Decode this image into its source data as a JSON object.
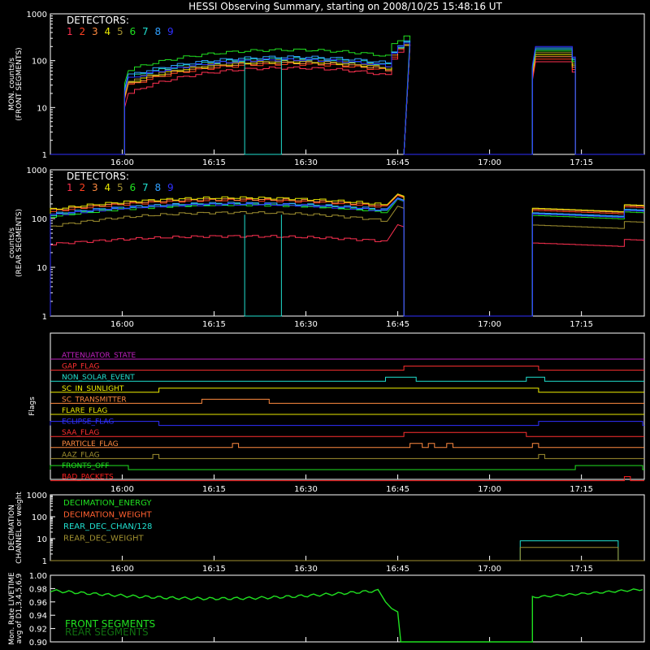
{
  "title": "HESSI Observing Summary, starting on 2008/10/25 15:48:16 UT",
  "time_ticks": [
    "16:00",
    "16:15",
    "16:30",
    "16:45",
    "17:00",
    "17:15"
  ],
  "colors": {
    "d1": "#ff3050",
    "d2": "#ff4020",
    "d3": "#ff8a40",
    "d4": "#e8e800",
    "d5": "#a09030",
    "d6": "#20e020",
    "d7": "#20e0d0",
    "d8": "#30a0ff",
    "d9": "#3030ff"
  },
  "chart_data": [
    {
      "type": "line",
      "ylabel": "MON. counts/s",
      "ylabel2": "(FRONT SEGMENTS)",
      "ylim": [
        1,
        1000
      ],
      "yscale": "log",
      "yticks": [
        "1",
        "10",
        "100",
        "1000"
      ],
      "legend_title": "DETECTORS:",
      "legend": [
        "1",
        "2",
        "3",
        "4",
        "5",
        "6",
        "7",
        "8",
        "9"
      ],
      "detectors": [
        {
          "name": "1",
          "start": 20,
          "mid": 70,
          "peak": 200
        },
        {
          "name": "2",
          "start": 30,
          "mid": 85,
          "peak": 210
        },
        {
          "name": "3",
          "start": 32,
          "mid": 90,
          "peak": 220
        },
        {
          "name": "4",
          "start": 35,
          "mid": 95,
          "peak": 225
        },
        {
          "name": "5",
          "start": 38,
          "mid": 100,
          "peak": 230
        },
        {
          "name": "6",
          "start": 65,
          "mid": 170,
          "peak": 340
        },
        {
          "name": "7",
          "start": 45,
          "mid": 110,
          "peak": 240
        },
        {
          "name": "8",
          "start": 50,
          "mid": 120,
          "peak": 250
        },
        {
          "name": "9",
          "start": 42,
          "mid": 105,
          "peak": 235
        }
      ],
      "segment1": {
        "from": "16:01",
        "to": "16:46"
      },
      "segment2": {
        "from": "17:07",
        "to": "17:14"
      },
      "segment2_level": {
        "min": 95,
        "max": 200
      }
    },
    {
      "type": "line",
      "ylabel": "counts/s",
      "ylabel2": "(REAR SEGMENTS)",
      "ylim": [
        1,
        1000
      ],
      "yscale": "log",
      "yticks": [
        "1",
        "10",
        "100",
        "1000"
      ],
      "legend_title": "DETECTORS:",
      "legend": [
        "1",
        "2",
        "3",
        "4",
        "5",
        "6",
        "7",
        "8",
        "9"
      ],
      "detectors": [
        {
          "name": "1",
          "start": 30,
          "mid": 45,
          "peak": 75
        },
        {
          "name": "2",
          "start": 140,
          "mid": 250,
          "peak": 300
        },
        {
          "name": "3",
          "start": 150,
          "mid": 260,
          "peak": 310
        },
        {
          "name": "4",
          "start": 155,
          "mid": 280,
          "peak": 320
        },
        {
          "name": "5",
          "start": 70,
          "mid": 140,
          "peak": 180
        },
        {
          "name": "6",
          "start": 110,
          "mid": 200,
          "peak": 250
        },
        {
          "name": "7",
          "start": 120,
          "mid": 210,
          "peak": 260
        },
        {
          "name": "8",
          "start": 125,
          "mid": 215,
          "peak": 265
        },
        {
          "name": "9",
          "start": 118,
          "mid": 205,
          "peak": 255
        }
      ]
    },
    {
      "type": "flags",
      "ylabel": "Flags",
      "flags": [
        {
          "name": "ATTENUATOR_STATE",
          "color": "#c020c0"
        },
        {
          "name": "GAP_FLAG",
          "color": "#ff3030"
        },
        {
          "name": "NON_SOLAR_EVENT",
          "color": "#20e0d0"
        },
        {
          "name": "SC_IN_SUNLIGHT",
          "color": "#f0f000"
        },
        {
          "name": "SC_TRANSMITTER",
          "color": "#ff8a40"
        },
        {
          "name": "FLARE_FLAG",
          "color": "#e8e800"
        },
        {
          "name": "ECLIPSE_FLAG",
          "color": "#3030ff"
        },
        {
          "name": "SAA_FLAG",
          "color": "#ff3030"
        },
        {
          "name": "PARTICLE_FLAG",
          "color": "#ff8a40"
        },
        {
          "name": "AAZ_FLAG",
          "color": "#a09030"
        },
        {
          "name": "FRONTS_OFF",
          "color": "#20e020"
        },
        {
          "name": "BAD_PACKETS",
          "color": "#ff2020"
        }
      ]
    },
    {
      "type": "line",
      "ylabel": "DECIMATION",
      "ylabel2": "CHANNEL or weight",
      "ylim": [
        1,
        1000
      ],
      "yscale": "log",
      "yticks": [
        "1",
        "10",
        "100",
        "1000"
      ],
      "series": [
        {
          "name": "DECIMATION_ENERGY",
          "color": "#20e020"
        },
        {
          "name": "DECIMATION_WEIGHT",
          "color": "#ff6030"
        },
        {
          "name": "REAR_DEC_CHAN/128",
          "color": "#20e0d0"
        },
        {
          "name": "REAR_DEC_WEIGHT",
          "color": "#a09030"
        }
      ],
      "boxes": [
        {
          "series": "REAR_DEC_CHAN/128",
          "from": "17:05",
          "to": "17:21",
          "value": 8
        },
        {
          "series": "REAR_DEC_WEIGHT",
          "from": "17:05",
          "to": "17:21",
          "value": 4
        }
      ]
    },
    {
      "type": "line",
      "ylabel": "Mon. Rate LIVETIME",
      "ylabel2": "avg of D1,3,4,5,6,9",
      "ylim": [
        0.9,
        1.0
      ],
      "yticks": [
        "0.90",
        "0.92",
        "0.94",
        "0.96",
        "0.98",
        "1.00"
      ],
      "series": [
        {
          "name": "FRONT SEGMENTS",
          "color": "#20e020"
        },
        {
          "name": "REAR SEGMENTS",
          "color": "#107010"
        }
      ]
    }
  ]
}
